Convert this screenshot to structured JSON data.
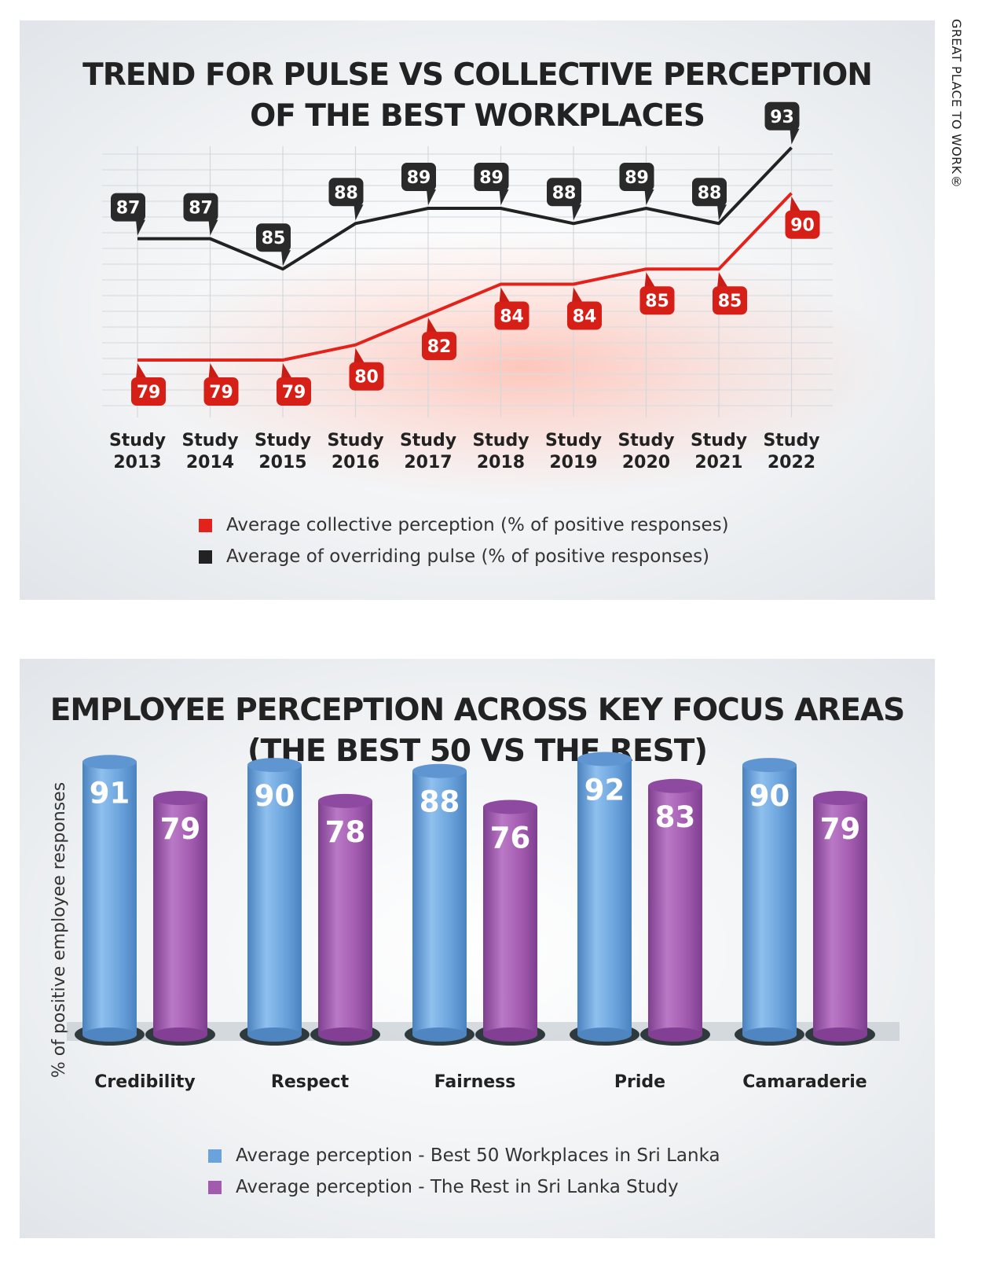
{
  "watermark": "GREAT PLACE TO WORK®",
  "chart_data": [
    {
      "type": "line",
      "title_lines": [
        "TREND FOR PULSE VS COLLECTIVE PERCEPTION",
        "OF THE BEST WORKPLACES"
      ],
      "categories": [
        [
          "Study",
          "2013"
        ],
        [
          "Study",
          "2014"
        ],
        [
          "Study",
          "2015"
        ],
        [
          "Study",
          "2016"
        ],
        [
          "Study",
          "2017"
        ],
        [
          "Study",
          "2018"
        ],
        [
          "Study",
          "2019"
        ],
        [
          "Study",
          "2020"
        ],
        [
          "Study",
          "2021"
        ],
        [
          "Study",
          "2022"
        ]
      ],
      "series": [
        {
          "name": "Average collective perception (% of positive responses)",
          "color": "#e3231b",
          "values": [
            79,
            79,
            79,
            80,
            82,
            84,
            84,
            85,
            85,
            90
          ]
        },
        {
          "name": "Average of overriding pulse (% of positive responses)",
          "color": "#222222",
          "values": [
            87,
            87,
            85,
            88,
            89,
            89,
            88,
            89,
            88,
            93
          ]
        }
      ],
      "ylim": [
        76,
        95
      ],
      "grid": true,
      "legend_position": "bottom-center"
    },
    {
      "type": "bar",
      "title_lines": [
        "EMPLOYEE PERCEPTION ACROSS KEY FOCUS AREAS",
        "(THE BEST 50 VS THE REST)"
      ],
      "ylabel": "% of positive employee responses",
      "categories": [
        "Credibility",
        "Respect",
        "Fairness",
        "Pride",
        "Camaraderie"
      ],
      "series": [
        {
          "name": "Average perception - Best 50 Workplaces in Sri Lanka",
          "color": "#6aa3dc",
          "values": [
            91,
            90,
            88,
            92,
            90
          ]
        },
        {
          "name": "Average perception - The Rest in Sri Lanka Study",
          "color": "#a35bb0",
          "values": [
            79,
            78,
            76,
            83,
            79
          ]
        }
      ],
      "legend_position": "bottom-center"
    }
  ]
}
